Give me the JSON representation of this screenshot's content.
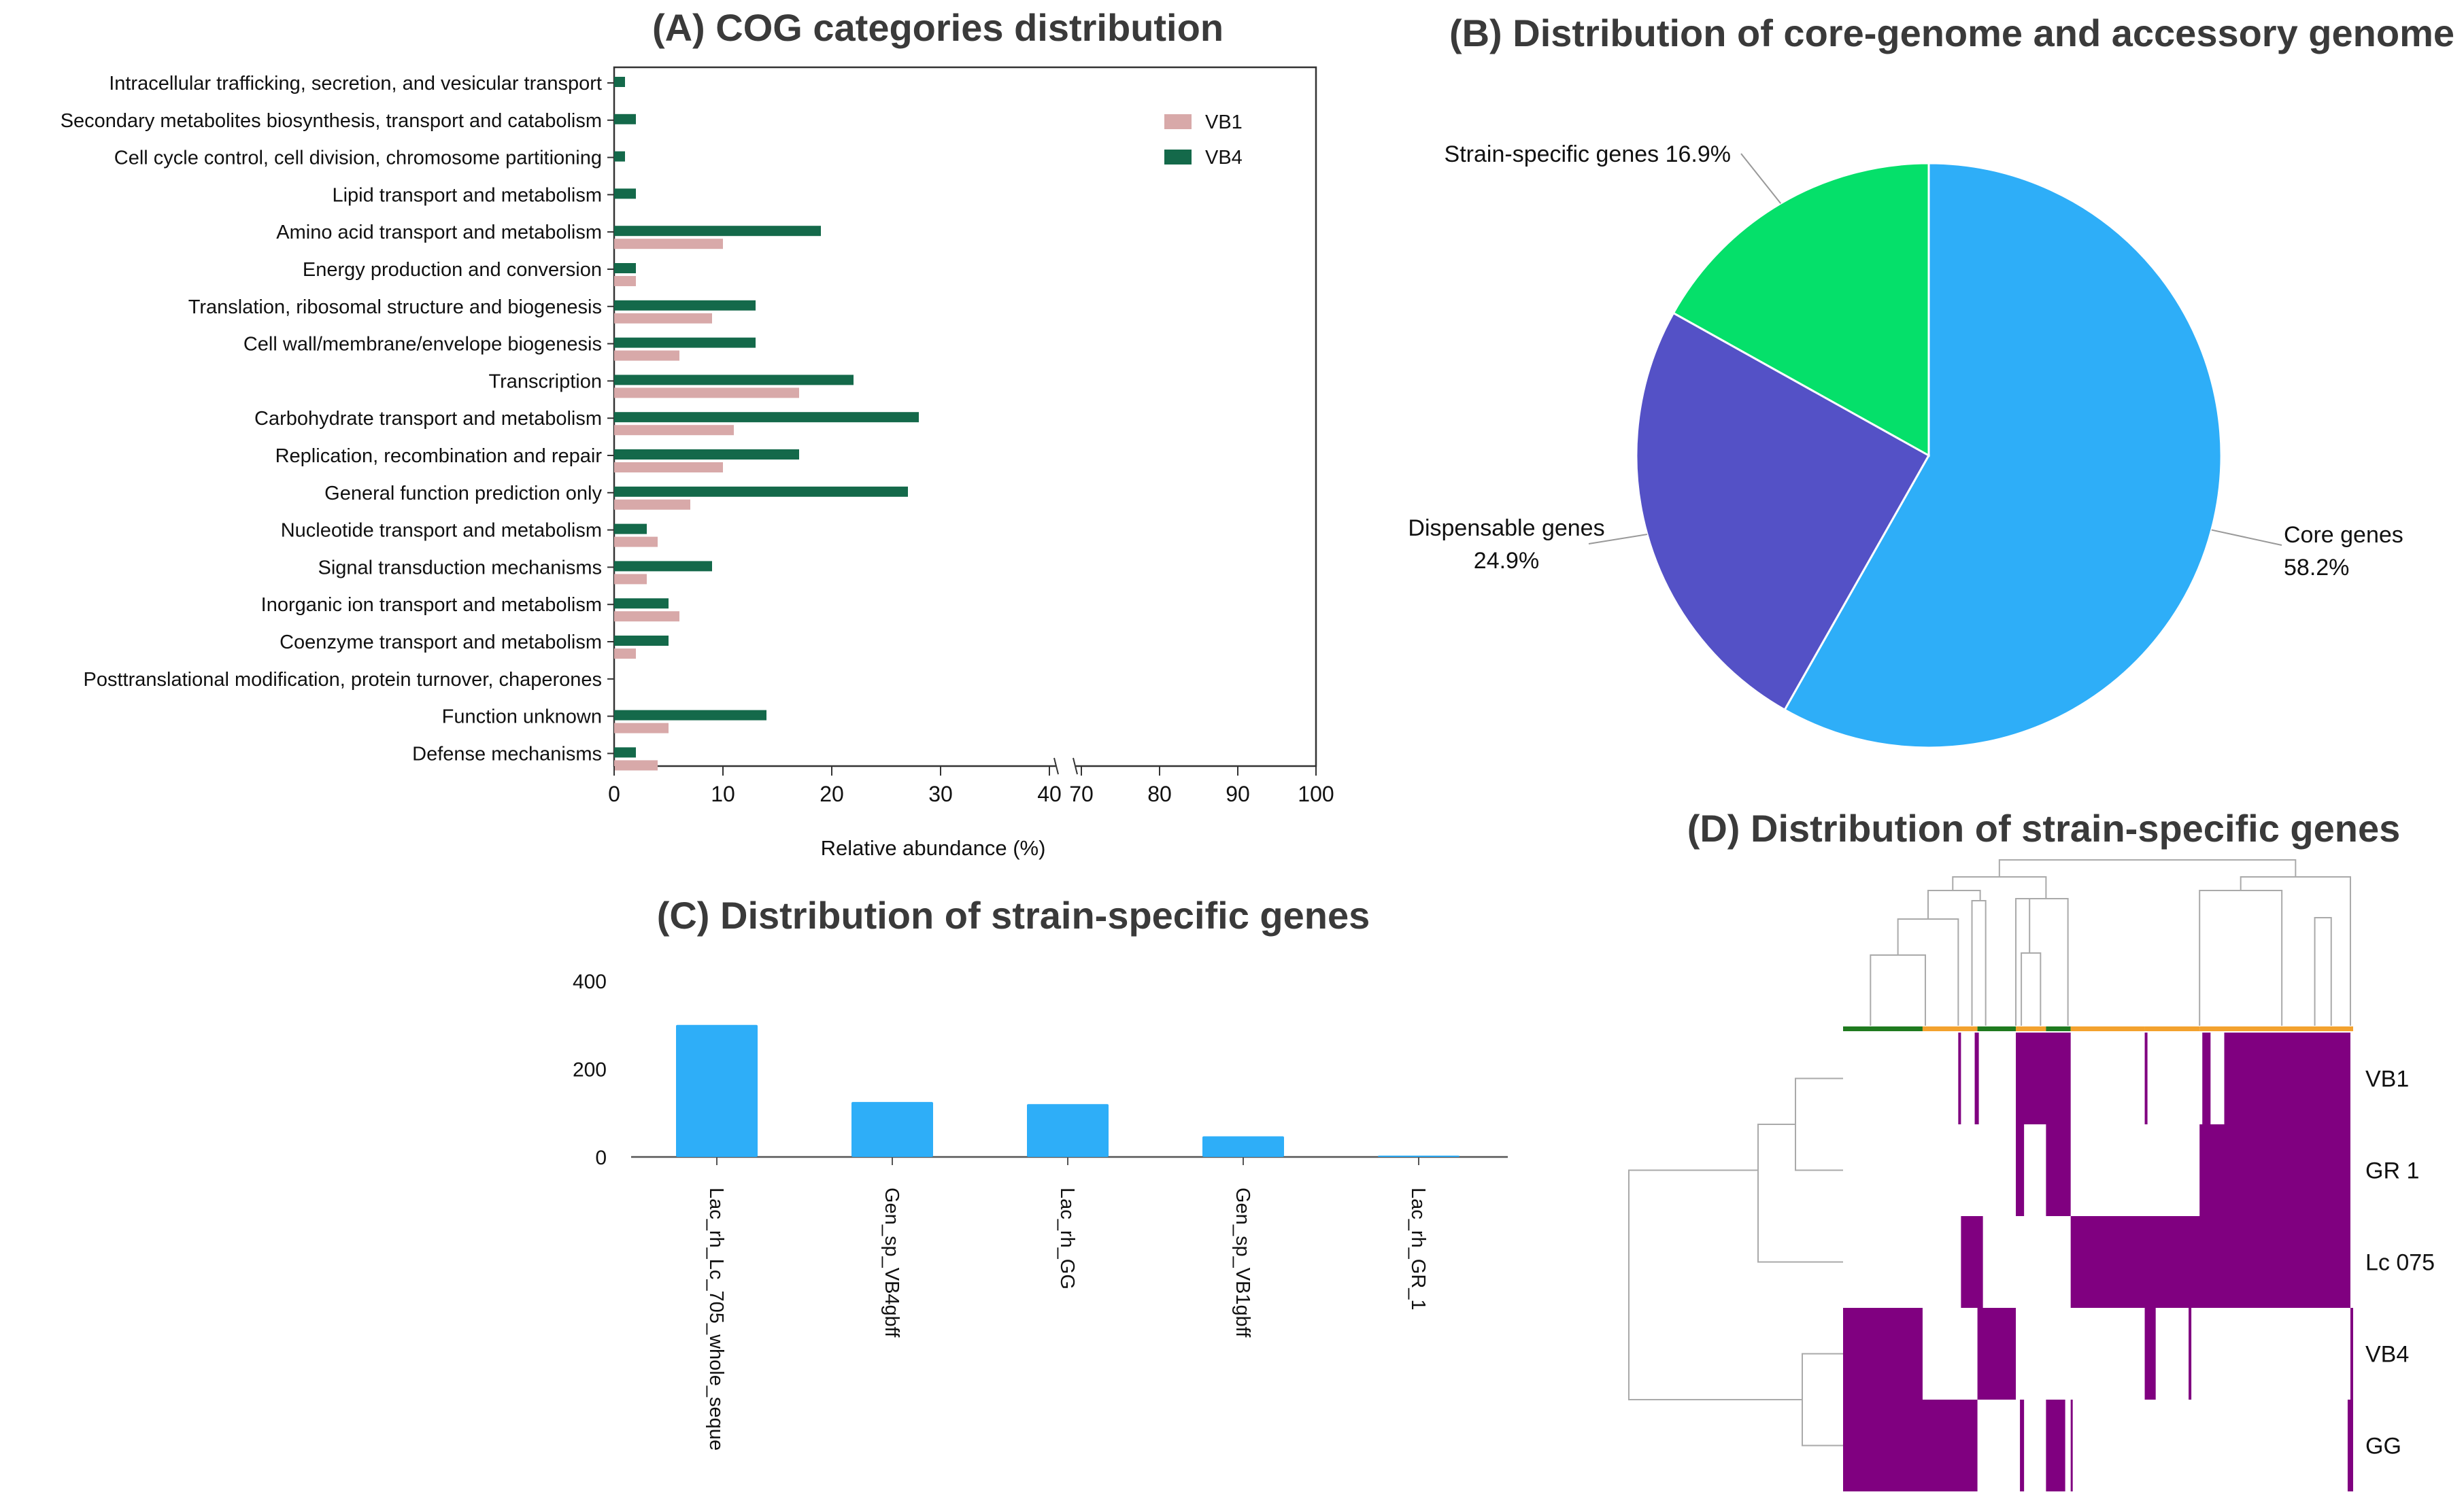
{
  "chart_data": [
    {
      "panel": "A",
      "type": "bar",
      "orientation": "horizontal",
      "title": "(A) COG categories distribution",
      "xlabel": "Relative abundance (%)",
      "ylabel": "",
      "xlim": [
        0,
        100
      ],
      "axis_break": [
        40,
        70
      ],
      "xticks": [
        "0",
        "10",
        "20",
        "30",
        "40",
        "70",
        "80",
        "90",
        "100"
      ],
      "legend_position": "top-right",
      "categories": [
        "Intracellular trafficking, secretion, and vesicular transport",
        "Secondary metabolites biosynthesis, transport and catabolism",
        "Cell cycle control, cell division, chromosome partitioning",
        "Lipid transport and metabolism",
        "Amino acid transport and metabolism",
        "Energy production and conversion",
        "Translation, ribosomal structure  and biogenesis",
        "Cell wall/membrane/envelope biogenesis",
        "Transcription",
        "Carbohydrate transport and metabolism",
        "Replication, recombination and repair",
        "General function prediction only",
        "Nucleotide transport and metabolism",
        "Signal transduction mechanisms",
        "Inorganic ion transport and metabolism",
        "Coenzyme transport and metabolism",
        "Posttranslational modification, protein turnover, chaperones",
        "Function unknown",
        "Defense mechanisms"
      ],
      "series": [
        {
          "name": "VB1",
          "color": "#d8a9a9",
          "values": [
            0,
            0,
            0,
            0,
            10,
            2,
            9,
            6,
            17,
            11,
            10,
            7,
            4,
            3,
            6,
            2,
            0,
            5,
            4
          ]
        },
        {
          "name": "VB4",
          "color": "#14694a",
          "values": [
            1,
            2,
            1,
            2,
            19,
            2,
            13,
            13,
            22,
            28,
            17,
            27,
            3,
            9,
            5,
            5,
            0,
            14,
            2
          ]
        }
      ]
    },
    {
      "panel": "B",
      "type": "pie",
      "title": "(B) Distribution of core-genome and accessory genome",
      "slices": [
        {
          "name": "Core genes",
          "value": 58.2,
          "label": "58.2%",
          "color": "#2eaef8"
        },
        {
          "name": "Dispensable genes",
          "value": 24.9,
          "label": "24.9%",
          "color": "#5451c6"
        },
        {
          "name": "Strain-specific genes",
          "value": 16.9,
          "label": "16.9%",
          "color": "#05e06a"
        }
      ]
    },
    {
      "panel": "C",
      "type": "bar",
      "title": "(C) Distribution of strain-specific genes",
      "xlabel": "",
      "ylabel": "",
      "ylim": [
        0,
        400
      ],
      "yticks": [
        "0",
        "200",
        "400"
      ],
      "color": "#2eaef8",
      "categories": [
        "Lac_rh_Lc_705_whole_seque",
        "Gen_sp_VB4gbff",
        "Lac_rh_GG",
        "Gen_sp_VB1gbff",
        "Lac_rh_GR_1"
      ],
      "values": [
        300,
        125,
        120,
        47,
        3
      ]
    },
    {
      "panel": "D",
      "type": "heatmap",
      "title": "(D) Distribution of strain-specific genes",
      "color": "#800080",
      "rows": [
        "VB1",
        "GR 1",
        "Lc 075",
        "VB4",
        "GG"
      ],
      "present_ranges": [
        [
          [
            0.42,
            0.43
          ],
          [
            0.48,
            0.495
          ],
          [
            0.63,
            0.83
          ],
          [
            1.1,
            1.11
          ],
          [
            1.31,
            1.34
          ],
          [
            1.39,
            1.85
          ]
        ],
        [
          [
            0.63,
            0.66
          ],
          [
            0.74,
            0.83
          ],
          [
            1.3,
            1.85
          ]
        ],
        [
          [
            0.43,
            0.51
          ],
          [
            0.83,
            1.85
          ]
        ],
        [
          [
            0,
            0.29
          ],
          [
            0.49,
            0.63
          ],
          [
            1.1,
            1.14
          ],
          [
            1.26,
            1.27
          ],
          [
            1.85,
            1.86
          ]
        ],
        [
          [
            0,
            0.49
          ],
          [
            0.645,
            0.66
          ],
          [
            0.74,
            0.81
          ],
          [
            0.83,
            0.835
          ],
          [
            1.84,
            1.86
          ]
        ]
      ]
    }
  ]
}
